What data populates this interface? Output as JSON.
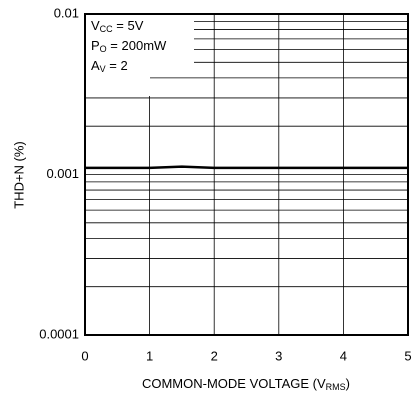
{
  "chart_data": {
    "type": "line",
    "y_label": "THD+N (%)",
    "x_label": [
      "COMMON-MODE VOLTAGE (V",
      "RMS",
      ")"
    ],
    "annotations": [
      [
        "V",
        "CC",
        " = 5V"
      ],
      [
        "P",
        "O",
        " = 200mW"
      ],
      [
        "A",
        "V",
        " = 2"
      ]
    ],
    "x": [
      0,
      0.5,
      1,
      1.5,
      2,
      2.5,
      3,
      3.5,
      4,
      4.5,
      5
    ],
    "series": [
      {
        "name": "THD+N",
        "color": "#000000",
        "values": [
          0.0011,
          0.0011,
          0.0011,
          0.00112,
          0.0011,
          0.0011,
          0.0011,
          0.0011,
          0.0011,
          0.0011,
          0.0011
        ]
      }
    ],
    "xlim": [
      0,
      5
    ],
    "xticks": [
      0,
      1,
      2,
      3,
      4,
      5
    ],
    "ylim": [
      0.0001,
      0.01
    ],
    "yticks": [
      0.0001,
      0.001,
      0.01
    ],
    "y_minor_ticks": [
      0.0002,
      0.0003,
      0.0004,
      0.0005,
      0.0006,
      0.0007,
      0.0008,
      0.0009,
      0.002,
      0.003,
      0.004,
      0.005,
      0.006,
      0.007,
      0.008,
      0.009
    ],
    "log_y": true,
    "grid": true
  }
}
